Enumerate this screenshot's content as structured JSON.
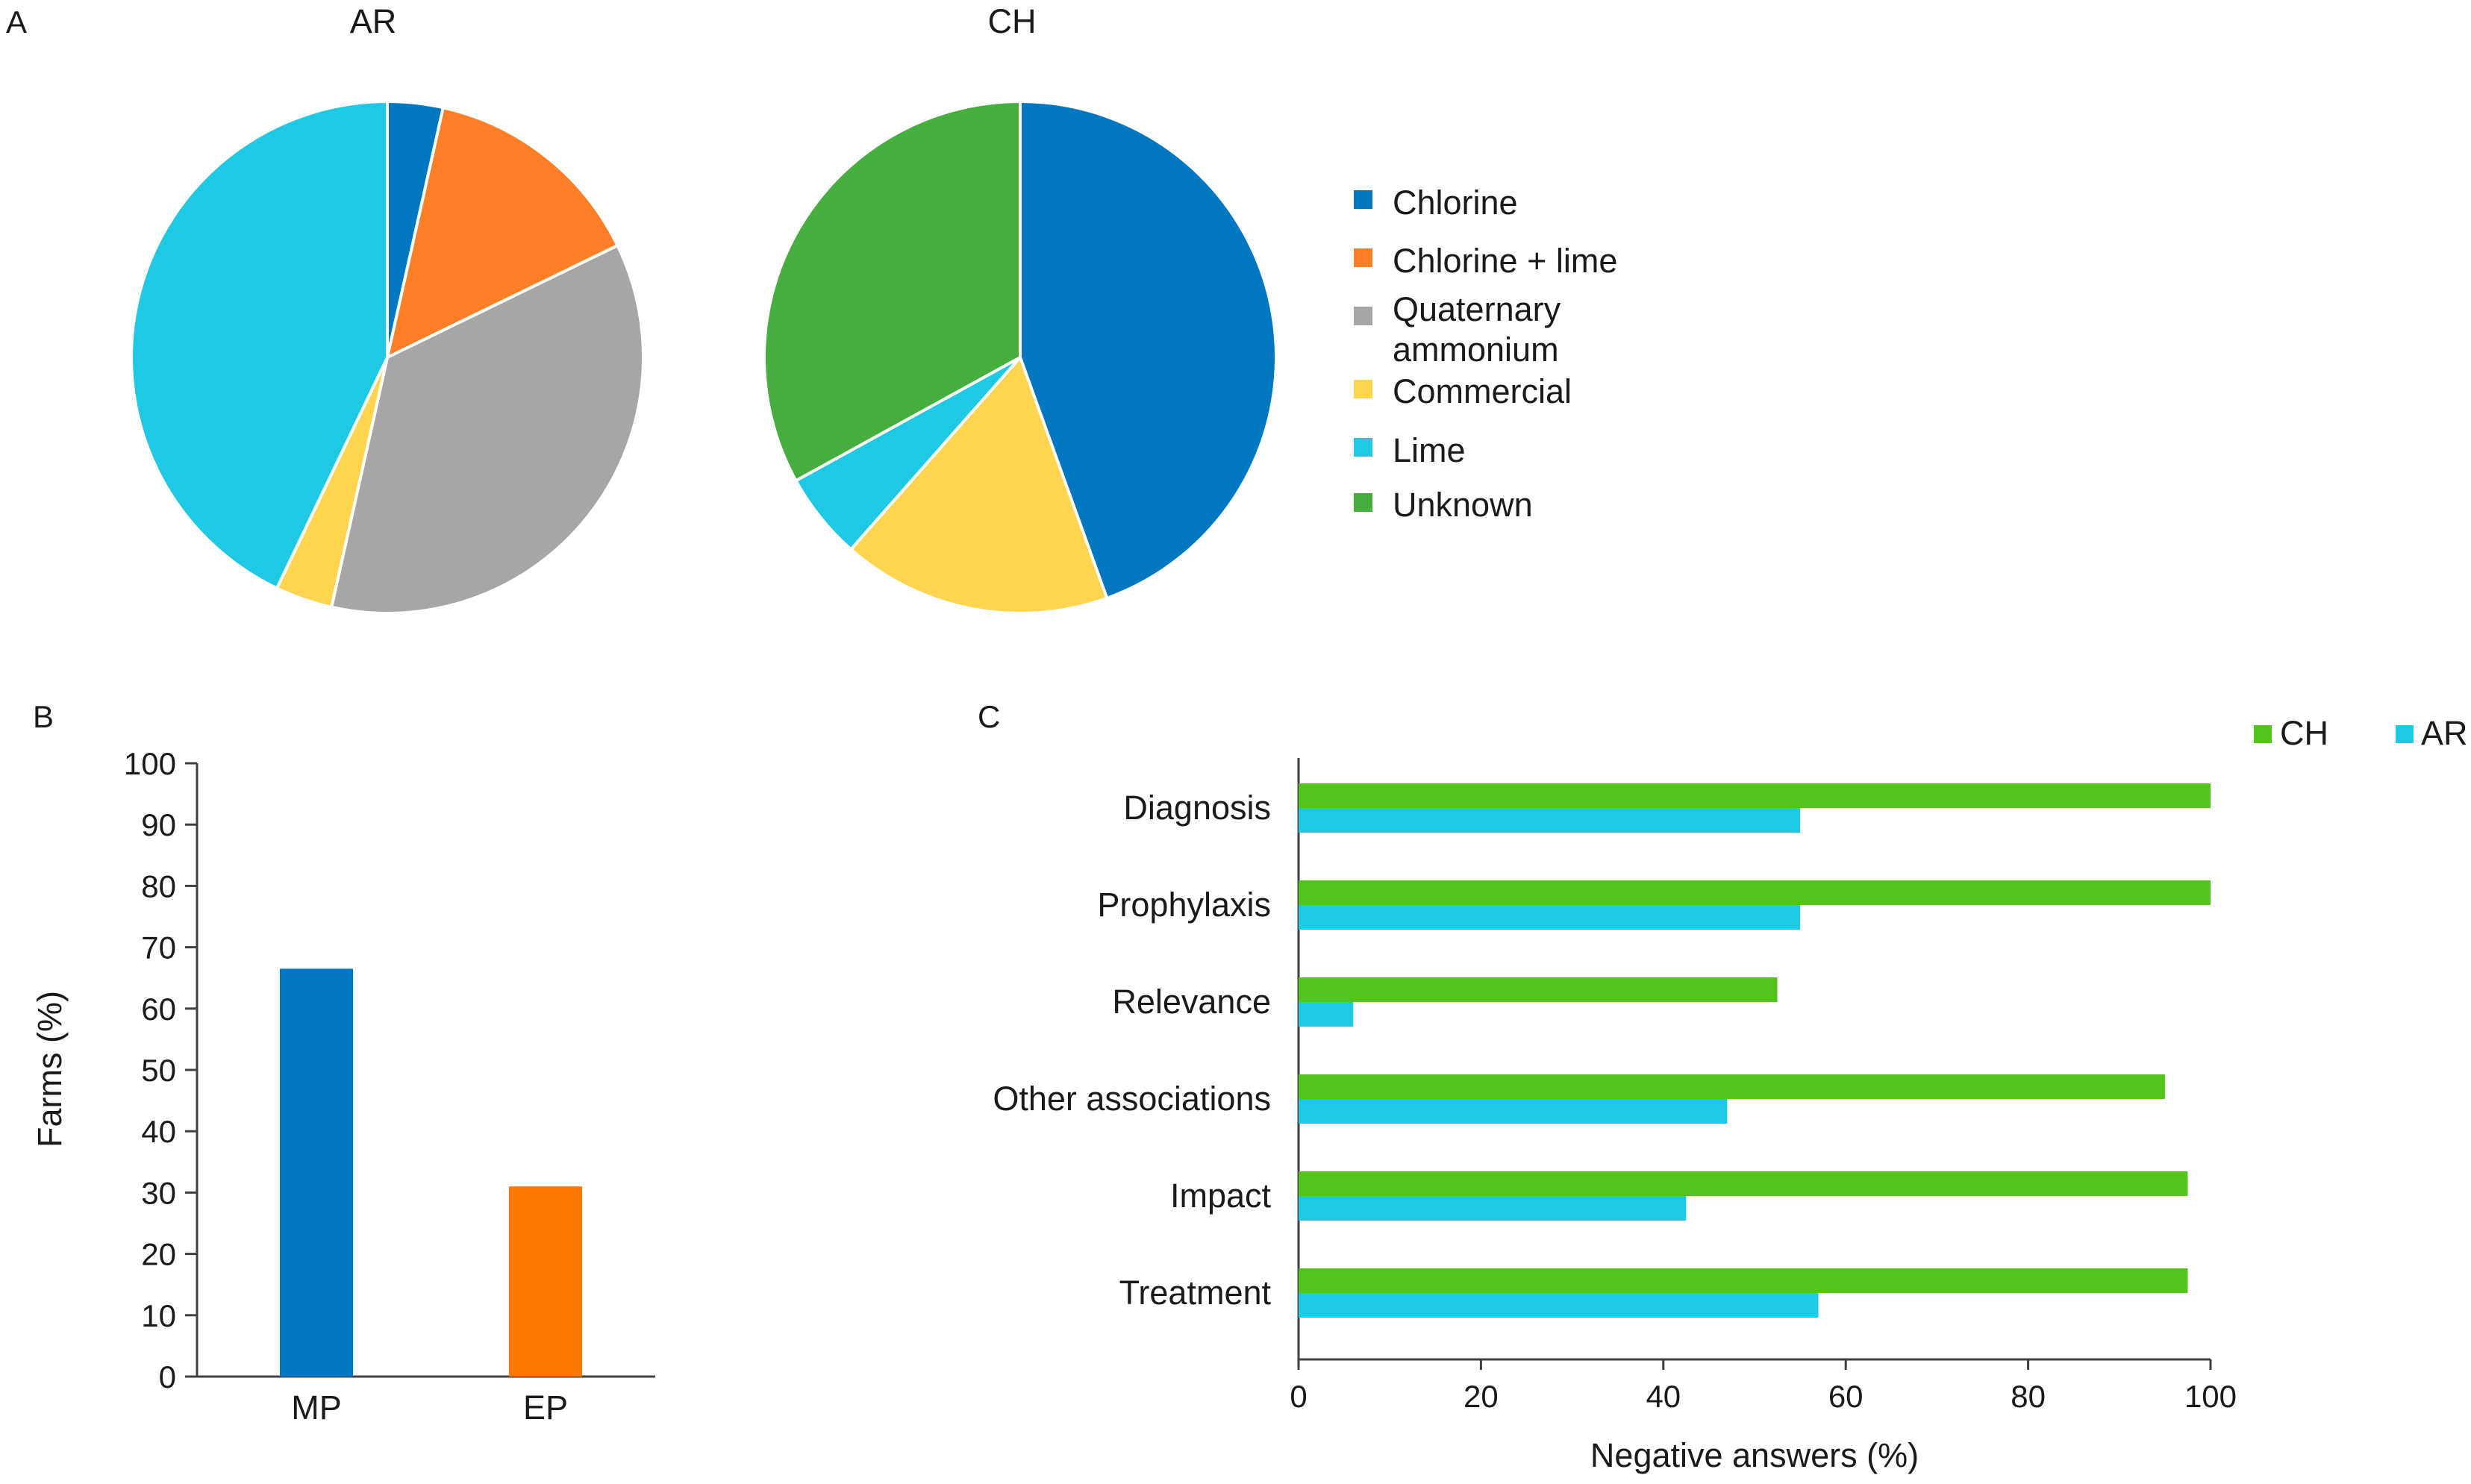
{
  "figure_labels": {
    "A": "A",
    "B": "B",
    "C": "C"
  },
  "chart_data": [
    {
      "type": "pie",
      "panel": "A",
      "title": "AR",
      "categories": [
        "Chlorine",
        "Chlorine + lime",
        "Quaternary ammonium",
        "Commercial",
        "Lime"
      ],
      "values": [
        3.5,
        14.3,
        35.7,
        3.6,
        42.9
      ],
      "colors": [
        "#0077C0",
        "#FF7F27",
        "#A6A6A6",
        "#FFD44F",
        "#1FC9E3"
      ]
    },
    {
      "type": "pie",
      "panel": "A",
      "title": "CH",
      "categories": [
        "Chlorine",
        "Commercial",
        "Lime",
        "Unknown"
      ],
      "values": [
        44.5,
        17.0,
        5.5,
        33.0
      ],
      "colors": [
        "#0077C0",
        "#FFD44F",
        "#1FC9E3",
        "#45AE3F"
      ],
      "legend": {
        "position": "right",
        "items": [
          {
            "label": "Chlorine",
            "color": "#0077C0"
          },
          {
            "label": "Chlorine + lime",
            "color": "#FF7F27"
          },
          {
            "label": "Quaternary",
            "label_line2": "ammonium",
            "color": "#A6A6A6"
          },
          {
            "label": "Commercial",
            "color": "#FFD44F"
          },
          {
            "label": "Lime",
            "color": "#1FC9E3"
          },
          {
            "label": "Unknown",
            "color": "#45AE3F"
          }
        ]
      }
    },
    {
      "type": "bar",
      "panel": "B",
      "categories": [
        "MP",
        "EP"
      ],
      "values": [
        66.5,
        31
      ],
      "colors": [
        "#0077C0",
        "#FF7800"
      ],
      "ylabel": "Farms (%)",
      "xlabel": "",
      "ylim": [
        0,
        100
      ],
      "yticks": [
        0,
        10,
        20,
        30,
        40,
        50,
        60,
        70,
        80,
        90,
        100
      ]
    },
    {
      "type": "bar",
      "orientation": "horizontal",
      "panel": "C",
      "categories": [
        "Diagnosis",
        "Prophylaxis",
        "Relevance",
        "Other associations",
        "Impact",
        "Treatment"
      ],
      "series": [
        {
          "name": "CH",
          "color": "#52C41A",
          "values": [
            100,
            100,
            52.5,
            95,
            97.5,
            97.5
          ]
        },
        {
          "name": "AR",
          "color": "#1FC9E3",
          "values": [
            55,
            55,
            6,
            47,
            42.5,
            57
          ]
        }
      ],
      "xlabel": "Negative answers (%)",
      "xlim": [
        0,
        100
      ],
      "xticks": [
        0,
        20,
        40,
        60,
        80,
        100
      ],
      "legend": {
        "position": "top-right",
        "entries": [
          "CH",
          "AR"
        ]
      }
    }
  ]
}
